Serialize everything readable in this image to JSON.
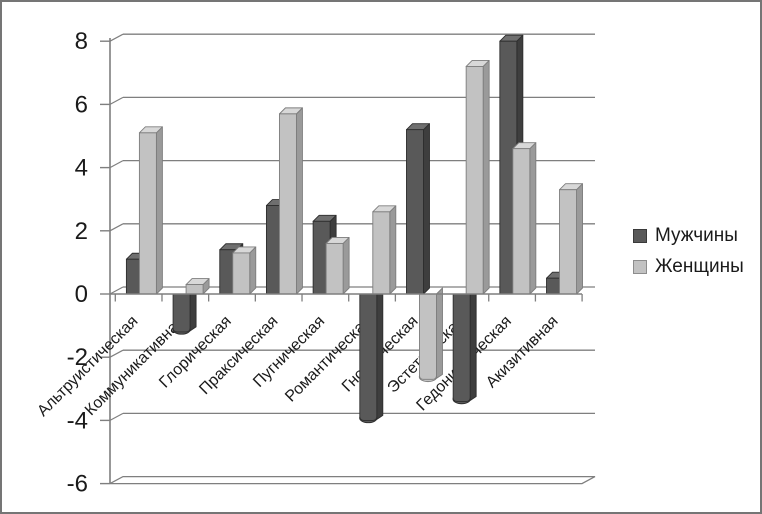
{
  "chart_data": {
    "type": "bar",
    "style": "3d-clustered-column",
    "title": "",
    "xlabel": "",
    "ylabel": "",
    "categories": [
      "Альтруистическая",
      "Коммуникативная",
      "Глорическая",
      "Праксическая",
      "Пугническая",
      "Романтическая",
      "Гностическая",
      "Эстетическая",
      "Гедонистическая",
      "Акизитивная"
    ],
    "series": [
      {
        "key": "men",
        "name": "Мужчины",
        "values": [
          1.1,
          -1.2,
          1.4,
          2.8,
          2.3,
          -4.0,
          5.2,
          -3.4,
          8.0,
          0.5
        ],
        "colors": {
          "front": "#595959",
          "top": "#6f6f6f",
          "side": "#3e3e3e",
          "outline": "#2e2e2e"
        }
      },
      {
        "key": "women",
        "name": "Женщины",
        "values": [
          5.1,
          0.3,
          1.3,
          5.7,
          1.6,
          2.6,
          -2.7,
          7.2,
          4.6,
          3.3
        ],
        "colors": {
          "front": "#c2c2c2",
          "top": "#d8d8d8",
          "side": "#9a9a9a",
          "outline": "#7d7d7d"
        }
      }
    ],
    "ylim": [
      -6,
      8
    ],
    "yticks": [
      8,
      6,
      4,
      2,
      0,
      -2,
      -4,
      -6
    ],
    "grid": true,
    "legend_position": "right",
    "axis_color": "#7f7f7f",
    "text_color": "#1a1a1a"
  }
}
